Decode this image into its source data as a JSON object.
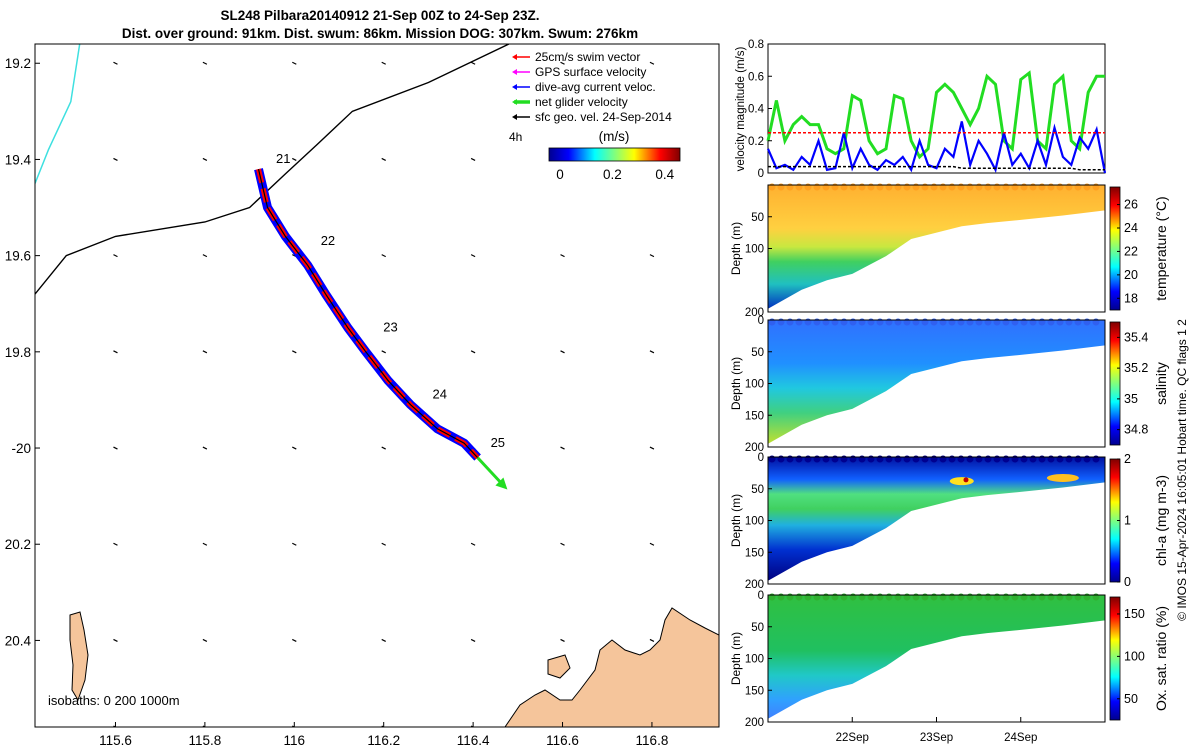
{
  "title": {
    "line1": "SL248 Pilbara20140912 21-Sep 00Z to 24-Sep 23Z.",
    "line2": "Dist. over ground: 91km. Dist. swum: 86km. Mission DOG: 307km. Swum: 276km"
  },
  "map": {
    "lon_ticks": [
      "115.6",
      "115.8",
      "116",
      "116.2",
      "116.4",
      "116.6",
      "116.8"
    ],
    "lat_ticks": [
      "19.2",
      "19.4",
      "19.6",
      "19.8",
      "-20",
      "20.2",
      "20.4"
    ],
    "legend": [
      {
        "label": "25cm/s swim vector",
        "color": "#ff0000"
      },
      {
        "label": "GPS surface velocity",
        "color": "#ff00ff"
      },
      {
        "label": "dive-avg current veloc.",
        "color": "#0000ff"
      },
      {
        "label": "net glider velocity",
        "color": "#22dd22"
      },
      {
        "label": "sfc geo. vel. 24-Sep-2014",
        "color": "#000000"
      }
    ],
    "colorbar": {
      "unit": "(m/s)",
      "ticks": [
        "0",
        "0.2",
        "0.4"
      ],
      "corner_label": "4h"
    },
    "day_labels": [
      "21",
      "22",
      "23",
      "24",
      "25"
    ],
    "isobath_label": "isobaths: 0   200  1000m",
    "colors": {
      "land": "#f5c59b",
      "isobath_0": "#3ee0e0",
      "isobath_200": "#000000"
    }
  },
  "velocity_panel": {
    "ylabel": "velocity magnitude (m/s)",
    "yticks": [
      "0",
      "0.2",
      "0.4",
      "0.6",
      "0.8"
    ]
  },
  "section_panels": [
    {
      "id": "temperature",
      "cbar_label": "temperature (°C)",
      "cbar_ticks": [
        "18",
        "20",
        "22",
        "24",
        "26"
      ],
      "ylabel": "Depth (m)",
      "yticks": [
        "200",
        "100",
        "50"
      ]
    },
    {
      "id": "salinity",
      "cbar_label": "salinity",
      "cbar_ticks": [
        "34.8",
        "35",
        "35.2",
        "35.4"
      ],
      "ylabel": "Depth (m)",
      "yticks": [
        "200",
        "150",
        "100",
        "50",
        "0"
      ]
    },
    {
      "id": "chl",
      "cbar_label": "chl-a (mg m-3)",
      "cbar_ticks": [
        "0",
        "1",
        "2"
      ],
      "ylabel": "Depth (m)",
      "yticks": [
        "200",
        "150",
        "100",
        "50",
        "0"
      ]
    },
    {
      "id": "oxygen",
      "cbar_label": "Ox. sat. ratio (%)",
      "cbar_ticks": [
        "50",
        "100",
        "150"
      ],
      "ylabel": "Depth (m)",
      "yticks": [
        "200",
        "150",
        "100",
        "50",
        "0"
      ]
    }
  ],
  "time_ticks": [
    "22Sep",
    "23Sep",
    "24Sep"
  ],
  "footer": "© IMOS 15-Apr-2024 16:05:01 Hobart time. QC flags 1  2",
  "chart_data": [
    {
      "type": "line",
      "panel": "map",
      "xlabel": "",
      "ylabel": "",
      "xlim": [
        115.42,
        116.95
      ],
      "ylim": [
        20.58,
        19.16
      ],
      "track_series": [
        {
          "name": "glider track",
          "points": [
            [
              115.92,
              19.42
            ],
            [
              115.94,
              19.5
            ],
            [
              115.98,
              19.56
            ],
            [
              116.03,
              19.62
            ],
            [
              116.07,
              19.68
            ],
            [
              116.12,
              19.75
            ],
            [
              116.16,
              19.8
            ],
            [
              116.21,
              19.86
            ],
            [
              116.26,
              19.91
            ],
            [
              116.32,
              19.96
            ],
            [
              116.38,
              19.99
            ],
            [
              116.41,
              20.02
            ]
          ]
        },
        {
          "name": "net glider velocity",
          "points": [
            [
              116.41,
              20.02
            ],
            [
              116.47,
              20.08
            ]
          ]
        }
      ],
      "isobath_0": [
        [
          115.52,
          19.16
        ],
        [
          115.5,
          19.28
        ],
        [
          115.45,
          19.38
        ],
        [
          115.42,
          19.45
        ]
      ],
      "isobath_200": [
        [
          116.48,
          19.16
        ],
        [
          116.3,
          19.24
        ],
        [
          116.13,
          19.3
        ],
        [
          116.05,
          19.37
        ],
        [
          115.98,
          19.43
        ],
        [
          115.9,
          19.5
        ],
        [
          115.8,
          19.53
        ],
        [
          115.6,
          19.56
        ],
        [
          115.49,
          19.6
        ],
        [
          115.42,
          19.68
        ]
      ],
      "day_marks": [
        {
          "label": "21",
          "lon": 115.93,
          "lat": 19.42
        },
        {
          "label": "22",
          "lon": 116.03,
          "lat": 19.59
        },
        {
          "label": "23",
          "lon": 116.17,
          "lat": 19.77
        },
        {
          "label": "24",
          "lon": 116.28,
          "lat": 19.91
        },
        {
          "label": "25",
          "lon": 116.41,
          "lat": 20.01
        }
      ]
    },
    {
      "type": "line",
      "panel": "velocity",
      "ylim": [
        0,
        0.8
      ],
      "x_days": [
        0,
        0.1,
        0.2,
        0.3,
        0.4,
        0.5,
        0.6,
        0.7,
        0.8,
        0.9,
        1,
        1.1,
        1.2,
        1.3,
        1.4,
        1.5,
        1.6,
        1.7,
        1.8,
        1.9,
        2,
        2.1,
        2.2,
        2.3,
        2.4,
        2.5,
        2.6,
        2.7,
        2.8,
        2.9,
        3,
        3.1,
        3.2,
        3.3,
        3.4,
        3.5,
        3.6,
        3.7,
        3.8,
        3.9,
        4
      ],
      "series": [
        {
          "name": "net glider velocity",
          "color": "#22dd22",
          "values": [
            0.2,
            0.45,
            0.2,
            0.3,
            0.35,
            0.3,
            0.3,
            0.15,
            0.12,
            0.15,
            0.48,
            0.45,
            0.2,
            0.12,
            0.15,
            0.48,
            0.46,
            0.2,
            0.1,
            0.15,
            0.5,
            0.55,
            0.5,
            0.4,
            0.3,
            0.4,
            0.6,
            0.55,
            0.2,
            0.15,
            0.58,
            0.62,
            0.2,
            0.15,
            0.55,
            0.6,
            0.2,
            0.15,
            0.5,
            0.6,
            0.6
          ]
        },
        {
          "name": "dive-avg current veloc.",
          "color": "#0000ff",
          "values": [
            0.15,
            0.03,
            0.05,
            0.02,
            0.1,
            0.05,
            0.2,
            0.02,
            0.03,
            0.25,
            0.03,
            0.15,
            0.05,
            0.02,
            0.08,
            0.05,
            0.1,
            0.02,
            0.2,
            0.05,
            0.03,
            0.15,
            0.1,
            0.32,
            0.05,
            0.2,
            0.12,
            0.02,
            0.25,
            0.05,
            0.12,
            0.03,
            0.2,
            0.05,
            0.28,
            0.1,
            0.05,
            0.22,
            0.15,
            0.27,
            0.0
          ]
        },
        {
          "name": "25cm/s swim vector",
          "color": "#ff0000",
          "values": [
            0.25,
            0.25,
            0.25,
            0.25,
            0.25,
            0.25,
            0.25,
            0.25,
            0.25,
            0.25,
            0.25,
            0.25,
            0.25,
            0.25,
            0.25,
            0.25,
            0.25,
            0.25,
            0.25,
            0.25,
            0.25,
            0.25,
            0.25,
            0.25,
            0.25,
            0.25,
            0.25,
            0.25,
            0.25,
            0.25,
            0.25,
            0.25,
            0.25,
            0.25,
            0.25,
            0.25,
            0.25,
            0.25,
            0.25,
            0.25,
            0.25
          ]
        },
        {
          "name": "sfc geo. vel. 24-Sep-2014",
          "color": "#000000",
          "values": [
            0.04,
            0.04,
            0.04,
            0.04,
            0.04,
            0.04,
            0.04,
            0.04,
            0.04,
            0.04,
            0.04,
            0.04,
            0.04,
            0.04,
            0.04,
            0.04,
            0.04,
            0.04,
            0.04,
            0.04,
            0.04,
            0.04,
            0.04,
            0.03,
            0.03,
            0.03,
            0.03,
            0.03,
            0.03,
            0.03,
            0.03,
            0.03,
            0.03,
            0.03,
            0.03,
            0.03,
            0.03,
            0.02,
            0.02,
            0.02,
            0.02
          ]
        }
      ]
    },
    {
      "type": "heatmap",
      "panel": "sections",
      "bottom_depth_by_day": [
        [
          0,
          195
        ],
        [
          0.4,
          165
        ],
        [
          0.7,
          150
        ],
        [
          1,
          140
        ],
        [
          1.4,
          112
        ],
        [
          1.7,
          85
        ],
        [
          2,
          75
        ],
        [
          2.3,
          65
        ],
        [
          2.6,
          60
        ],
        [
          3,
          55
        ],
        [
          3.5,
          48
        ],
        [
          4,
          40
        ]
      ],
      "temperature_range": [
        17,
        27.5
      ],
      "salinity_range": [
        34.7,
        35.5
      ],
      "chl_range": [
        0,
        2
      ],
      "oxygen_range": [
        25,
        170
      ]
    }
  ]
}
